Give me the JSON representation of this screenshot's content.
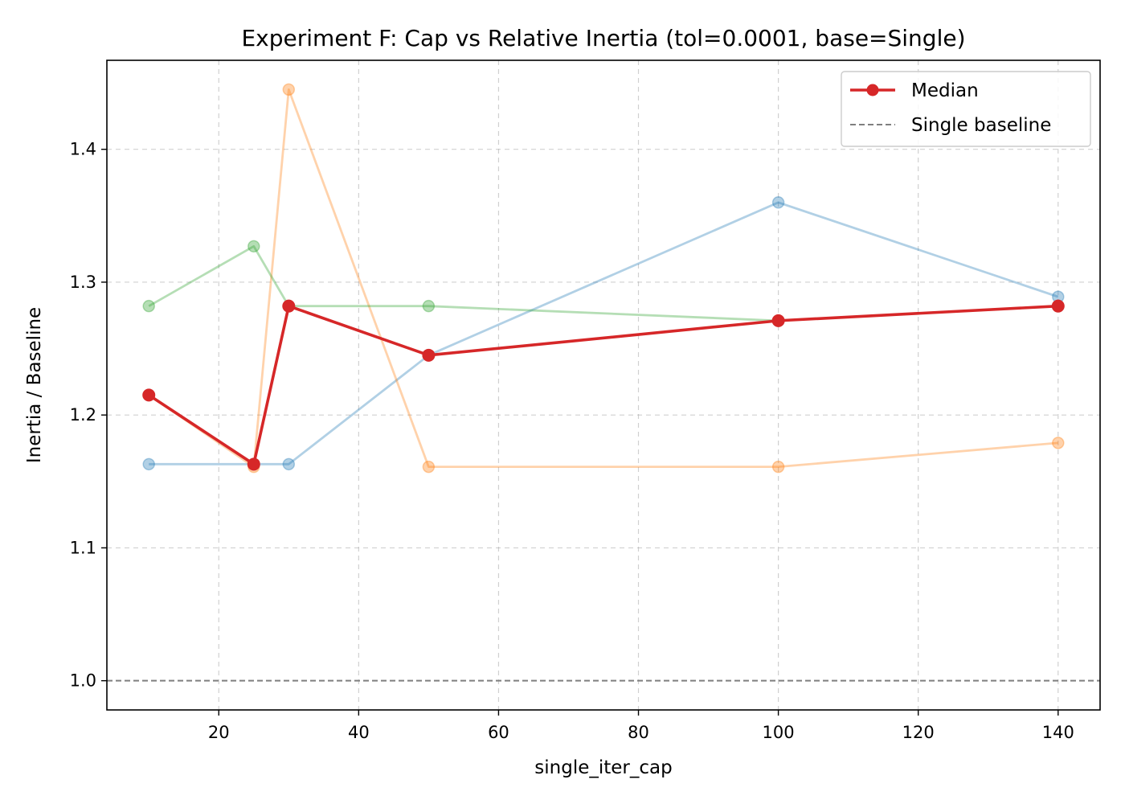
{
  "chart_data": {
    "type": "line",
    "title": "Experiment F: Cap vs Relative Inertia (tol=0.0001, base=Single)",
    "xlabel": "single_iter_cap",
    "ylabel": "Inertia / Baseline",
    "xlim": [
      4,
      146
    ],
    "ylim": [
      0.978,
      1.467
    ],
    "xticks": [
      20,
      40,
      60,
      80,
      100,
      120,
      140
    ],
    "yticks": [
      1.0,
      1.1,
      1.2,
      1.3,
      1.4
    ],
    "ytick_labels": [
      "1.0",
      "1.1",
      "1.2",
      "1.3",
      "1.4"
    ],
    "grid": true,
    "legend_position": "top-right",
    "baseline": {
      "name": "Single baseline",
      "y": 1.0,
      "color": "#7f7f7f"
    },
    "series": [
      {
        "name": "",
        "color": "#1f77b4",
        "faint": true,
        "x": [
          10,
          25,
          30,
          50,
          100,
          140
        ],
        "y": [
          1.163,
          1.163,
          1.163,
          1.245,
          1.36,
          1.289
        ]
      },
      {
        "name": "",
        "color": "#ff7f0e",
        "faint": true,
        "x": [
          10,
          25,
          30,
          50,
          100,
          140
        ],
        "y": [
          1.215,
          1.161,
          1.445,
          1.161,
          1.161,
          1.179
        ]
      },
      {
        "name": "",
        "color": "#2ca02c",
        "faint": true,
        "x": [
          10,
          25,
          30,
          50,
          100,
          140
        ],
        "y": [
          1.282,
          1.327,
          1.282,
          1.282,
          1.271,
          1.282
        ]
      },
      {
        "name": "Median",
        "color": "#d62728",
        "faint": false,
        "x": [
          10,
          25,
          30,
          50,
          100,
          140
        ],
        "y": [
          1.215,
          1.163,
          1.282,
          1.245,
          1.271,
          1.282
        ]
      }
    ]
  }
}
